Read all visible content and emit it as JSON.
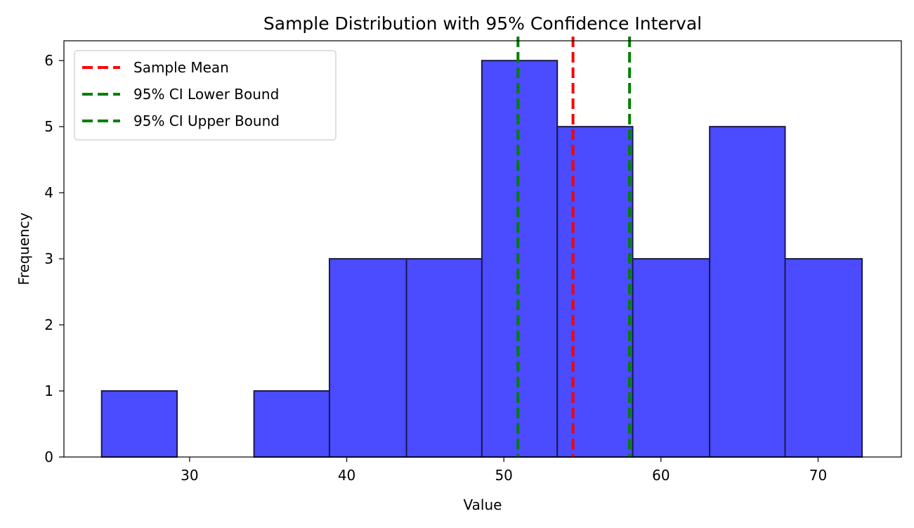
{
  "chart_data": {
    "type": "bar",
    "title": "Sample Distribution with 95% Confidence Interval",
    "xlabel": "Value",
    "ylabel": "Frequency",
    "xlim": [
      22.0,
      75.3
    ],
    "ylim": [
      0,
      6.3
    ],
    "xticks": [
      30,
      40,
      50,
      60,
      70
    ],
    "yticks": [
      0,
      1,
      2,
      3,
      4,
      5,
      6
    ],
    "bins": [
      {
        "x0": 24.4,
        "x1": 29.2,
        "count": 1
      },
      {
        "x0": 29.2,
        "x1": 34.1,
        "count": 0
      },
      {
        "x0": 34.1,
        "x1": 38.9,
        "count": 1
      },
      {
        "x0": 38.9,
        "x1": 43.8,
        "count": 3
      },
      {
        "x0": 43.8,
        "x1": 48.6,
        "count": 3
      },
      {
        "x0": 48.6,
        "x1": 53.4,
        "count": 6
      },
      {
        "x0": 53.4,
        "x1": 58.2,
        "count": 5
      },
      {
        "x0": 58.2,
        "x1": 63.1,
        "count": 3
      },
      {
        "x0": 63.1,
        "x1": 67.9,
        "count": 5
      },
      {
        "x0": 67.9,
        "x1": 72.8,
        "count": 3
      }
    ],
    "bar_color": "#4b4bff",
    "bar_edge_color": "#1a1a4d",
    "vlines": [
      {
        "name": "Sample Mean",
        "x": 54.4,
        "color": "#ff0000"
      },
      {
        "name": "95% CI Lower Bound",
        "x": 50.9,
        "color": "#008000"
      },
      {
        "name": "95% CI Upper Bound",
        "x": 58.0,
        "color": "#008000"
      }
    ],
    "legend": {
      "position": "top-left"
    },
    "grid": false
  }
}
